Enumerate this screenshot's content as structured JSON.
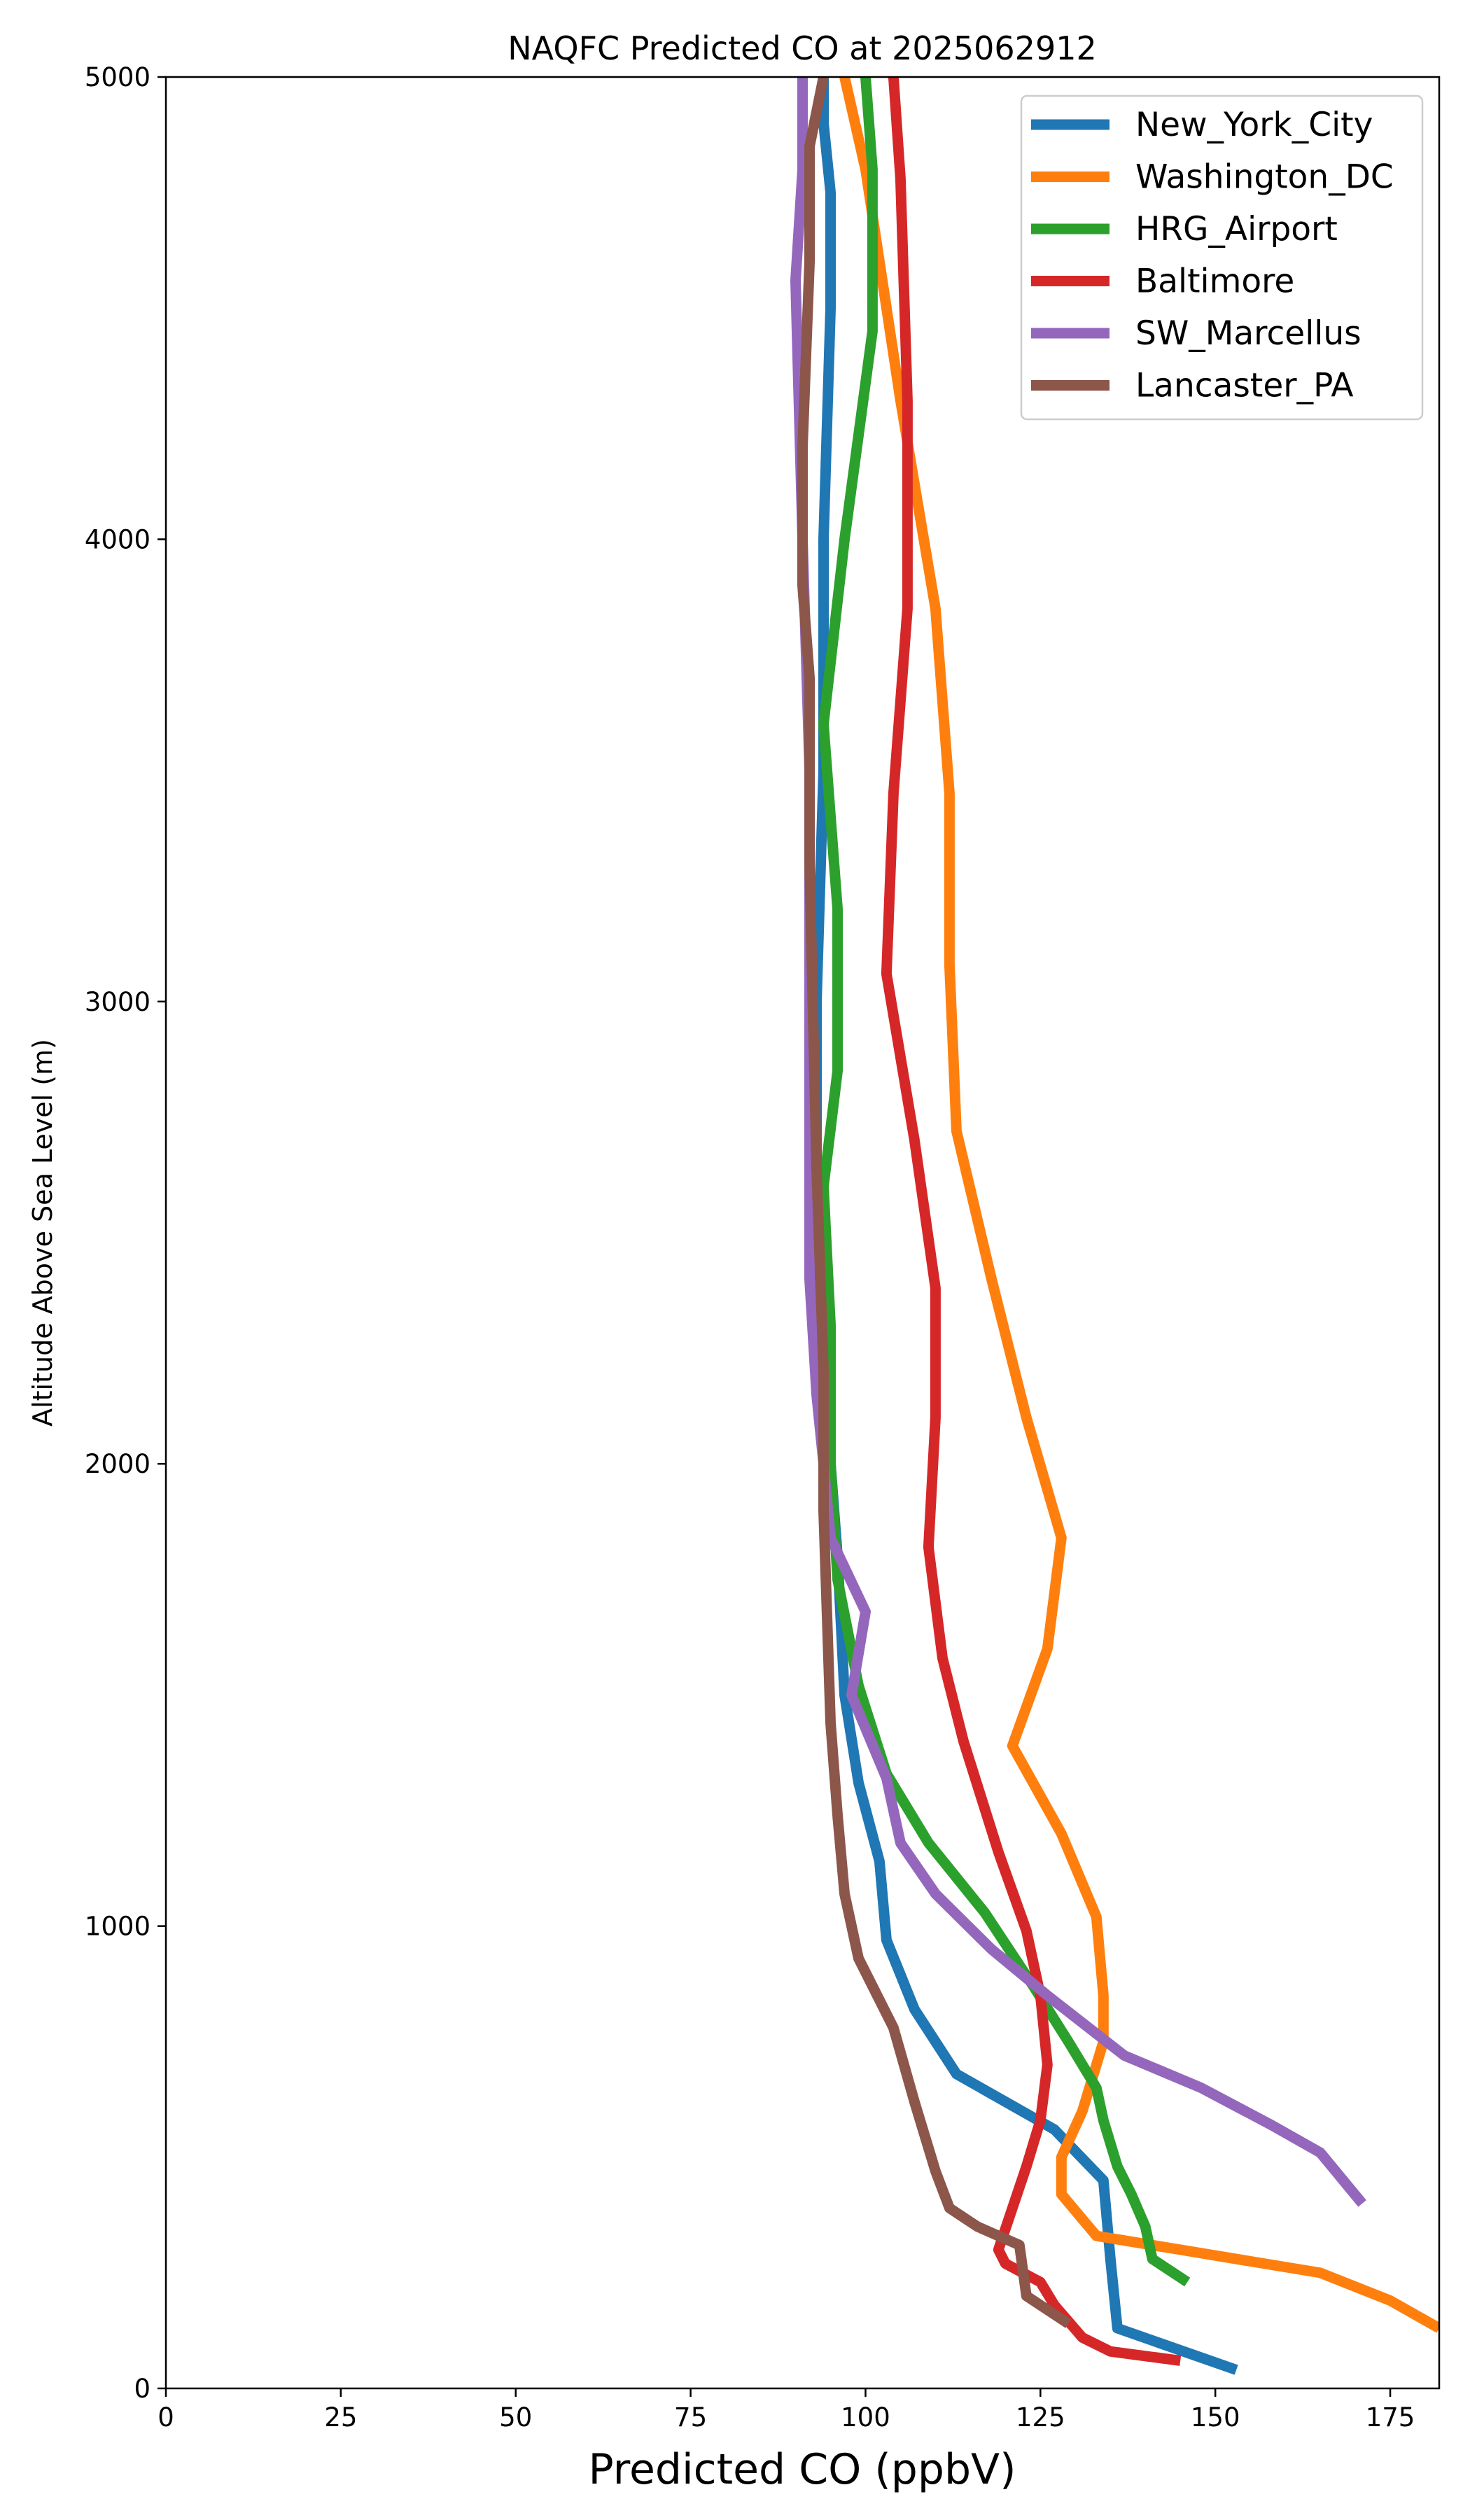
{
  "chart_data": {
    "type": "line",
    "title": "NAQFC Predicted CO at 2025062912",
    "xlabel": "Predicted CO (ppbV)",
    "ylabel": "Altitude Above Sea Level (m)",
    "xlim": [
      0,
      182
    ],
    "ylim": [
      0,
      5000
    ],
    "xticks": [
      0,
      25,
      50,
      75,
      100,
      125,
      150,
      175
    ],
    "yticks": [
      0,
      1000,
      2000,
      3000,
      4000,
      5000
    ],
    "grid": false,
    "legend_position": "top-right",
    "series": [
      {
        "name": "New_York_City",
        "color": "#1f77b4",
        "points": [
          [
            153,
            40
          ],
          [
            136,
            130
          ],
          [
            135,
            280
          ],
          [
            134,
            450
          ],
          [
            127,
            560
          ],
          [
            113,
            680
          ],
          [
            107,
            820
          ],
          [
            103,
            970
          ],
          [
            102,
            1140
          ],
          [
            99,
            1310
          ],
          [
            97,
            1500
          ],
          [
            96,
            1800
          ],
          [
            94,
            2200
          ],
          [
            93,
            2600
          ],
          [
            93,
            3000
          ],
          [
            94,
            3500
          ],
          [
            94,
            4000
          ],
          [
            95,
            4500
          ],
          [
            95,
            4750
          ],
          [
            94,
            4900
          ],
          [
            94,
            5000
          ]
        ]
      },
      {
        "name": "Washington_DC",
        "color": "#ff7f0e",
        "points": [
          [
            182,
            130
          ],
          [
            175,
            190
          ],
          [
            165,
            250
          ],
          [
            145,
            300
          ],
          [
            133,
            330
          ],
          [
            128,
            420
          ],
          [
            128,
            500
          ],
          [
            131,
            600
          ],
          [
            134,
            750
          ],
          [
            134,
            850
          ],
          [
            133,
            1020
          ],
          [
            128,
            1200
          ],
          [
            121,
            1390
          ],
          [
            126,
            1600
          ],
          [
            128,
            1840
          ],
          [
            123,
            2100
          ],
          [
            118,
            2400
          ],
          [
            113,
            2720
          ],
          [
            112,
            3080
          ],
          [
            112,
            3450
          ],
          [
            110,
            3850
          ],
          [
            105,
            4300
          ],
          [
            100,
            4800
          ],
          [
            97,
            5000
          ]
        ]
      },
      {
        "name": "HRG_Airport",
        "color": "#2ca02c",
        "points": [
          [
            146,
            230
          ],
          [
            141,
            280
          ],
          [
            140,
            350
          ],
          [
            138,
            420
          ],
          [
            136,
            480
          ],
          [
            134,
            580
          ],
          [
            133,
            650
          ],
          [
            129,
            750
          ],
          [
            124,
            870
          ],
          [
            117,
            1030
          ],
          [
            109,
            1180
          ],
          [
            103,
            1330
          ],
          [
            99,
            1520
          ],
          [
            96,
            1750
          ],
          [
            95,
            2000
          ],
          [
            95,
            2300
          ],
          [
            94,
            2600
          ],
          [
            96,
            2850
          ],
          [
            96,
            3200
          ],
          [
            94,
            3600
          ],
          [
            97,
            4000
          ],
          [
            101,
            4450
          ],
          [
            101,
            4800
          ],
          [
            100,
            5000
          ]
        ]
      },
      {
        "name": "Baltimore",
        "color": "#d62728",
        "points": [
          [
            145,
            60
          ],
          [
            135,
            80
          ],
          [
            131,
            110
          ],
          [
            127,
            180
          ],
          [
            125,
            230
          ],
          [
            120,
            270
          ],
          [
            119,
            300
          ],
          [
            121,
            390
          ],
          [
            123,
            480
          ],
          [
            125,
            580
          ],
          [
            126,
            700
          ],
          [
            125,
            850
          ],
          [
            123,
            990
          ],
          [
            119,
            1160
          ],
          [
            114,
            1400
          ],
          [
            111,
            1580
          ],
          [
            109,
            1820
          ],
          [
            110,
            2100
          ],
          [
            110,
            2380
          ],
          [
            107,
            2700
          ],
          [
            103,
            3060
          ],
          [
            104,
            3450
          ],
          [
            106,
            3850
          ],
          [
            106,
            4300
          ],
          [
            105,
            4780
          ],
          [
            104,
            5000
          ]
        ]
      },
      {
        "name": "SW_Marcellus",
        "color": "#9467bd",
        "points": [
          [
            171,
            400
          ],
          [
            165,
            510
          ],
          [
            158,
            570
          ],
          [
            148,
            650
          ],
          [
            137,
            720
          ],
          [
            126,
            850
          ],
          [
            118,
            950
          ],
          [
            110,
            1070
          ],
          [
            105,
            1180
          ],
          [
            103,
            1320
          ],
          [
            98,
            1500
          ],
          [
            100,
            1680
          ],
          [
            95,
            1840
          ],
          [
            94,
            2000
          ],
          [
            93,
            2150
          ],
          [
            92,
            2400
          ],
          [
            92,
            3000
          ],
          [
            92,
            3500
          ],
          [
            91,
            4000
          ],
          [
            90,
            4560
          ],
          [
            91,
            4800
          ],
          [
            91,
            5000
          ]
        ]
      },
      {
        "name": "Lancaster_PA",
        "color": "#8c564b",
        "points": [
          [
            129,
            140
          ],
          [
            123,
            200
          ],
          [
            122,
            310
          ],
          [
            116,
            350
          ],
          [
            112,
            390
          ],
          [
            110,
            470
          ],
          [
            107,
            620
          ],
          [
            104,
            780
          ],
          [
            99,
            930
          ],
          [
            97,
            1070
          ],
          [
            96,
            1240
          ],
          [
            95,
            1440
          ],
          [
            94,
            1900
          ],
          [
            94,
            2200
          ],
          [
            93,
            2640
          ],
          [
            92,
            3300
          ],
          [
            92,
            3700
          ],
          [
            91,
            3900
          ],
          [
            91,
            4200
          ],
          [
            92,
            4600
          ],
          [
            92,
            4850
          ],
          [
            94,
            5000
          ]
        ]
      }
    ]
  }
}
